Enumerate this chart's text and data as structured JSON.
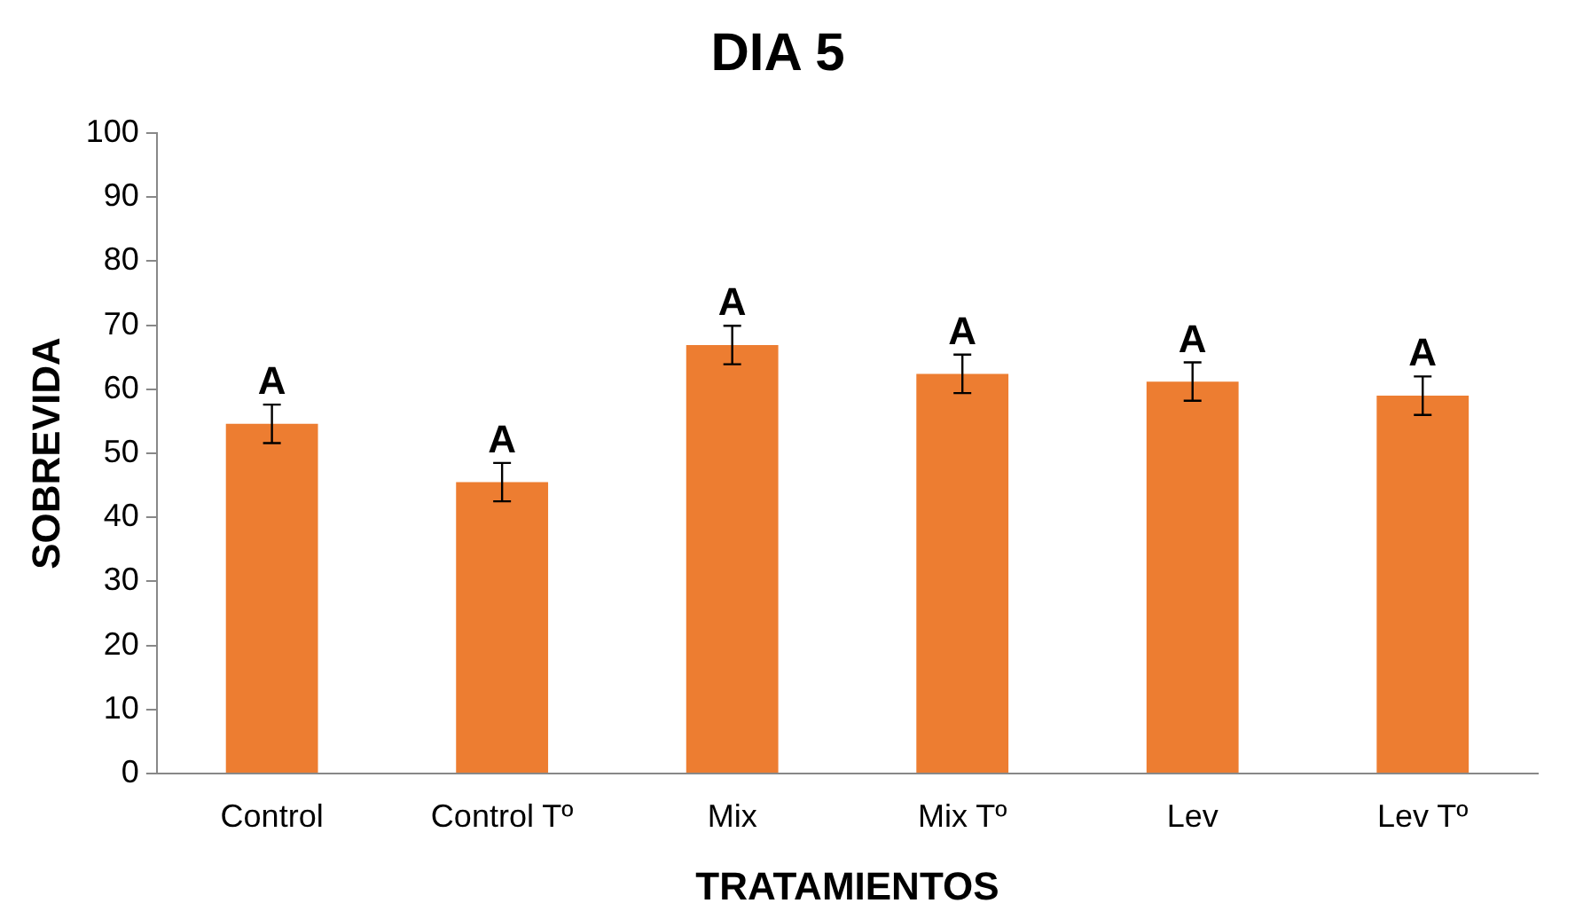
{
  "chart_data": {
    "type": "bar",
    "title": "DIA 5",
    "xlabel": "TRATAMIENTOS",
    "ylabel": "SOBREVIDA",
    "categories": [
      "Control",
      "Control Tº",
      "Mix",
      "Mix Tº",
      "Lev",
      "Lev Tº"
    ],
    "values": [
      54.6,
      45.5,
      66.9,
      62.4,
      61.2,
      59.0
    ],
    "errors": [
      3,
      3,
      3,
      3,
      3,
      3
    ],
    "color": "#ed7d31",
    "ylim": [
      0,
      100
    ],
    "yticks": [
      0,
      10,
      20,
      30,
      40,
      50,
      60,
      70,
      80,
      90,
      100
    ],
    "grid": false,
    "legend": false,
    "annotations": [
      {
        "text": "A",
        "x": "Control",
        "y": 57.6
      },
      {
        "text": "A",
        "x": "Control Tº",
        "y": 48.5
      },
      {
        "text": "A",
        "x": "Mix",
        "y": 69.9
      },
      {
        "text": "A",
        "x": "Mix Tº",
        "y": 65.4
      },
      {
        "text": "A",
        "x": "Lev",
        "y": 64.2
      },
      {
        "text": "A",
        "x": "Lev Tº",
        "y": 62.0
      }
    ]
  }
}
